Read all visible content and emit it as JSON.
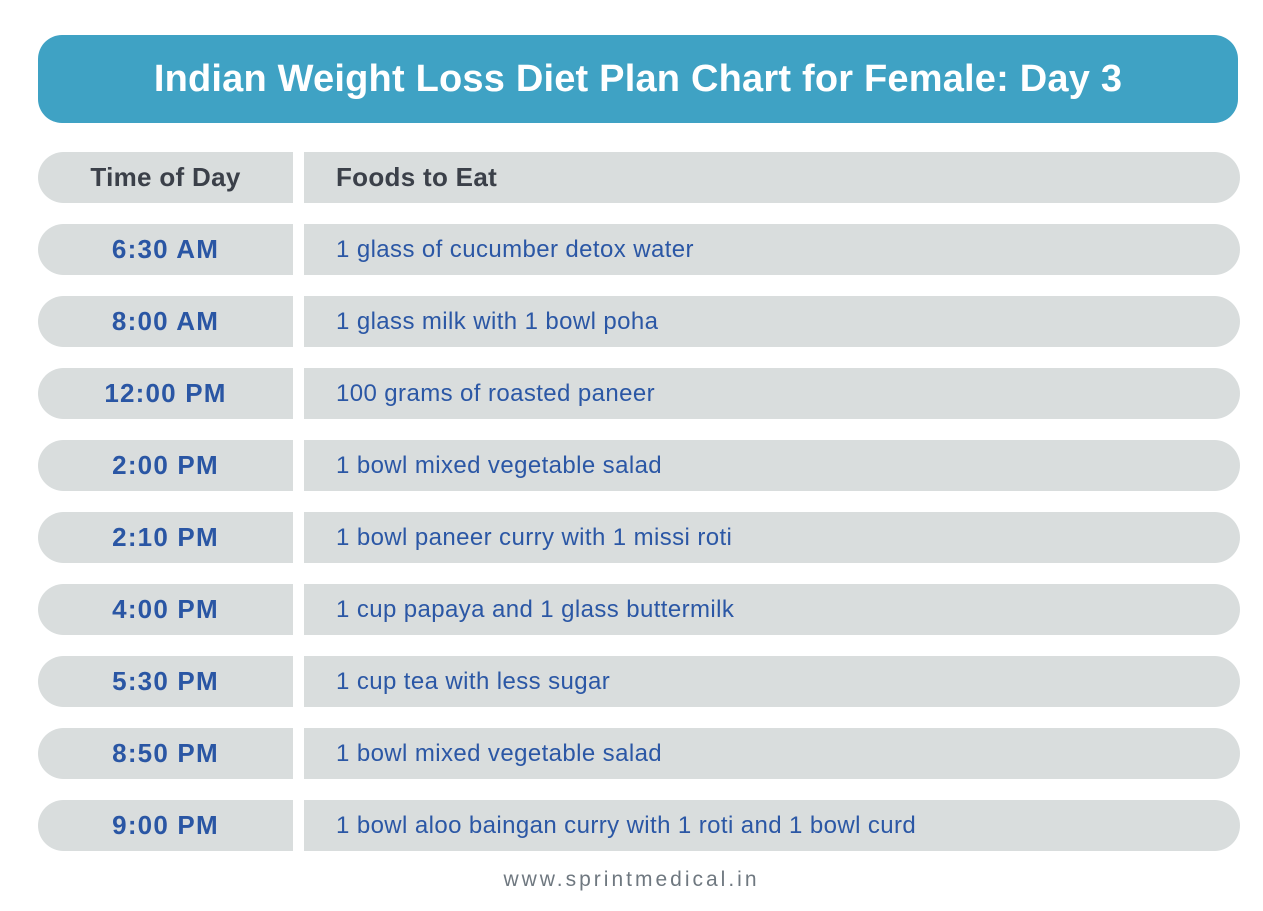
{
  "title": "Indian Weight Loss Diet Plan Chart for Female: Day 3",
  "chart_data": {
    "type": "table",
    "title": "Indian Weight Loss Diet Plan Chart for Female: Day 3",
    "columns": [
      "Time of Day",
      "Foods to Eat"
    ],
    "rows": [
      [
        "6:30 AM",
        "1 glass of cucumber detox water"
      ],
      [
        "8:00 AM",
        "1 glass milk with 1 bowl poha"
      ],
      [
        "12:00 PM",
        "100 grams of roasted paneer"
      ],
      [
        "2:00 PM",
        "1 bowl mixed vegetable salad"
      ],
      [
        "2:10 PM",
        "1 bowl paneer curry with 1 missi roti"
      ],
      [
        "4:00 PM",
        "1 cup papaya and 1 glass buttermilk"
      ],
      [
        "5:30 PM",
        "1 cup tea with less sugar"
      ],
      [
        "8:50 PM",
        "1 bowl mixed vegetable salad"
      ],
      [
        "9:00 PM",
        "1 bowl aloo baingan curry with 1 roti and 1 bowl curd"
      ]
    ]
  },
  "footer": {
    "website": "www.sprintmedical.in"
  },
  "colors": {
    "page_bg": "#ffffff",
    "banner_bg": "#3fa2c4",
    "title_text": "#ffffff",
    "cell_bg": "#d9dddd",
    "header_text": "#3b4049",
    "time_text": "#2a56a4",
    "food_text": "#2b57a5",
    "footer_text": "#6f7880"
  }
}
